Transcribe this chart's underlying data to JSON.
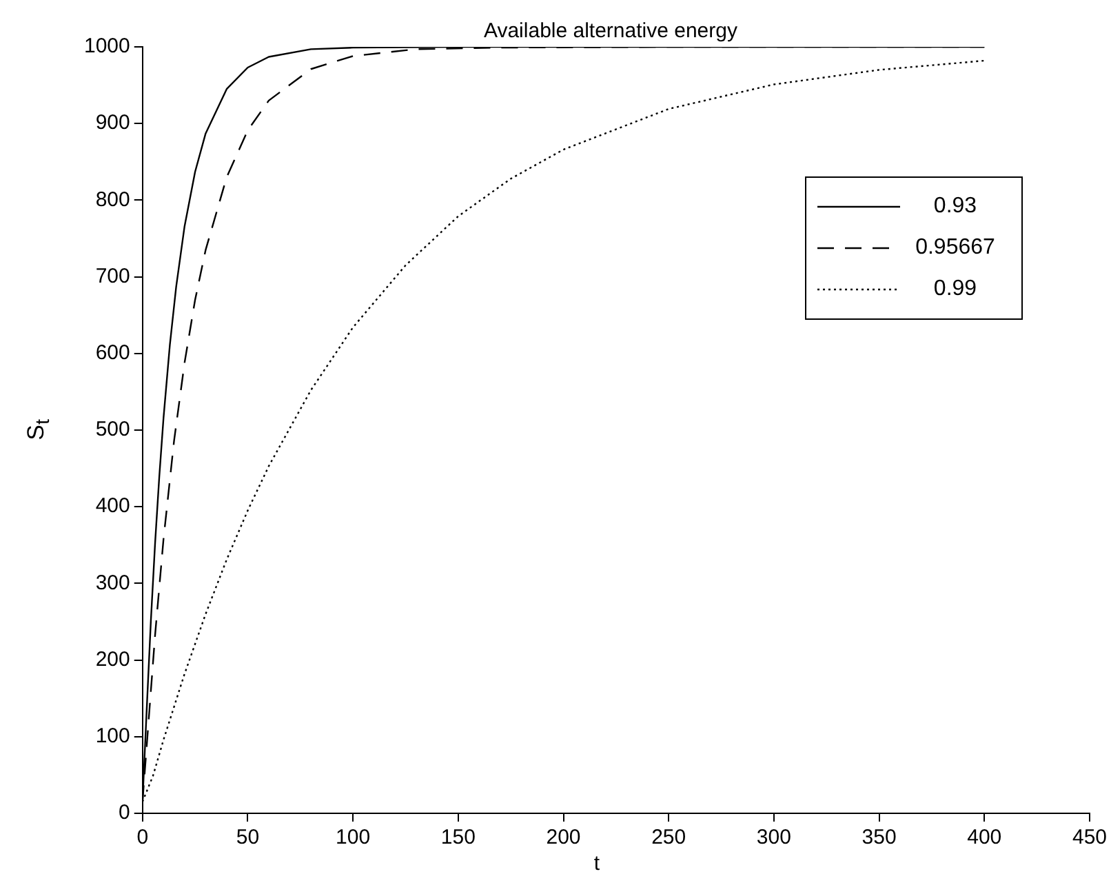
{
  "chart_data": {
    "type": "line",
    "title": "Available alternative energy",
    "xlabel": "t",
    "ylabel": "S$_{t}$",
    "xlim": [
      0,
      450
    ],
    "xticks": [
      0,
      50,
      100,
      150,
      200,
      250,
      300,
      350,
      400,
      450
    ],
    "ylim": [
      0,
      1000
    ],
    "yticks": [
      0,
      100,
      200,
      300,
      400,
      500,
      600,
      700,
      800,
      900,
      1000
    ],
    "grid": false,
    "legend": "top right",
    "marker": "none",
    "series": [
      {
        "name": "0.93",
        "color": "#000000",
        "line_style": "solid",
        "x": [
          0,
          2,
          4,
          6,
          8,
          10,
          13,
          16,
          20,
          25,
          30,
          40,
          50,
          60,
          80,
          100,
          150,
          200,
          300,
          400
        ],
        "values": [
          15,
          135,
          252,
          353,
          440,
          516,
          611,
          687,
          766,
          837,
          887,
          945,
          973,
          987,
          997,
          999,
          1000,
          1000,
          1000,
          1000
        ]
      },
      {
        "name": "0.95667",
        "color": "#000000",
        "line_style": "dashed",
        "x": [
          0,
          3,
          6,
          10,
          15,
          20,
          25,
          30,
          40,
          50,
          60,
          80,
          100,
          130,
          170,
          250,
          400
        ],
        "values": [
          15,
          124,
          233,
          358,
          486,
          588,
          670,
          735,
          830,
          891,
          930,
          971,
          988,
          997,
          999,
          1000,
          1000
        ]
      },
      {
        "name": "0.99",
        "color": "#000000",
        "line_style": "dotted",
        "x": [
          0,
          5,
          10,
          20,
          30,
          40,
          50,
          60,
          80,
          100,
          125,
          150,
          175,
          200,
          250,
          300,
          350,
          400
        ],
        "values": [
          15,
          49,
          96,
          182,
          260,
          331,
          395,
          453,
          552,
          634,
          715,
          779,
          828,
          866,
          919,
          951,
          970,
          982
        ]
      }
    ]
  }
}
